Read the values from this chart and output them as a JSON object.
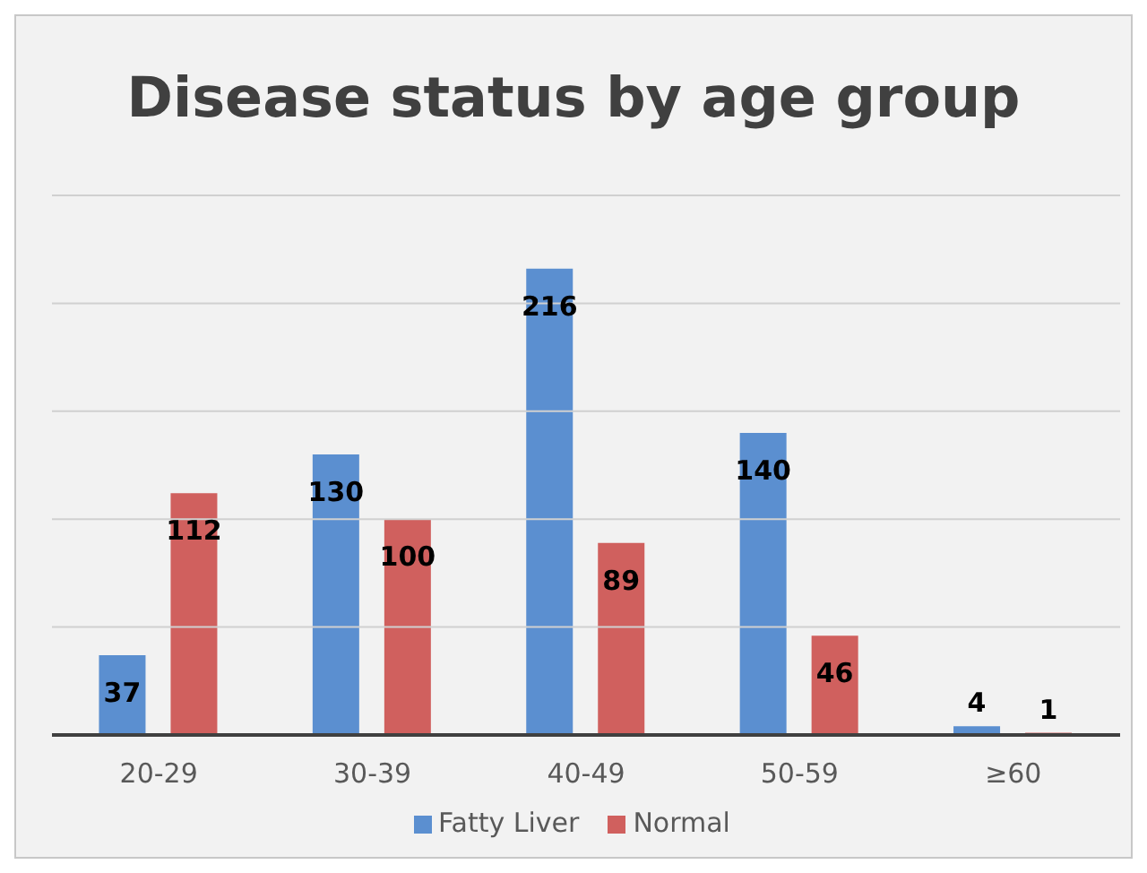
{
  "chart_data": {
    "type": "bar",
    "title": "Disease status by age group",
    "categories": [
      "20-29",
      "30-39",
      "40-49",
      "50-59",
      "≥60"
    ],
    "series": [
      {
        "name": "Fatty Liver",
        "color": "#5b8fd0",
        "values": [
          37,
          130,
          216,
          140,
          4
        ]
      },
      {
        "name": "Normal",
        "color": "#d0605e",
        "values": [
          112,
          100,
          89,
          46,
          1
        ]
      }
    ],
    "ylim": [
      0,
      250
    ],
    "yticks": [
      {
        "value": 0,
        "label": null
      },
      {
        "value": 50,
        "label": null
      },
      {
        "value": 100,
        "label": null
      },
      {
        "value": 150,
        "label": null
      },
      {
        "value": 200,
        "label": null
      },
      {
        "value": 250,
        "label": null
      }
    ],
    "tick_labels": "x",
    "grid": "y",
    "data_labels": true,
    "legend": "bottom"
  }
}
